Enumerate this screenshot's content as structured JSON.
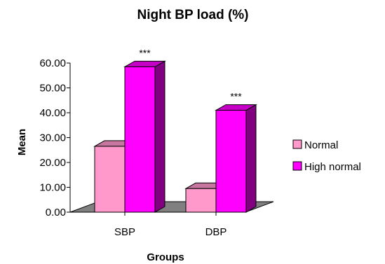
{
  "chart_data": {
    "type": "bar",
    "title": "Night BP load (%)",
    "xlabel": "Groups",
    "ylabel": "Mean",
    "categories": [
      "SBP",
      "DBP"
    ],
    "series": [
      {
        "name": "Normal",
        "values": [
          26.5,
          9.5
        ],
        "color": "#ff99cc"
      },
      {
        "name": "High normal",
        "values": [
          58.5,
          41.0
        ],
        "color": "#ff00ff"
      }
    ],
    "ylim": [
      0,
      60
    ],
    "yticks": [
      "0.00",
      "10.00",
      "20.00",
      "30.00",
      "40.00",
      "50.00",
      "60.00"
    ],
    "annotations": [
      {
        "category": "SBP",
        "series": "High normal",
        "text": "***"
      },
      {
        "category": "DBP",
        "series": "High normal",
        "text": "***"
      }
    ],
    "grid": false,
    "legend_position": "right",
    "floor_color": "#808080"
  }
}
